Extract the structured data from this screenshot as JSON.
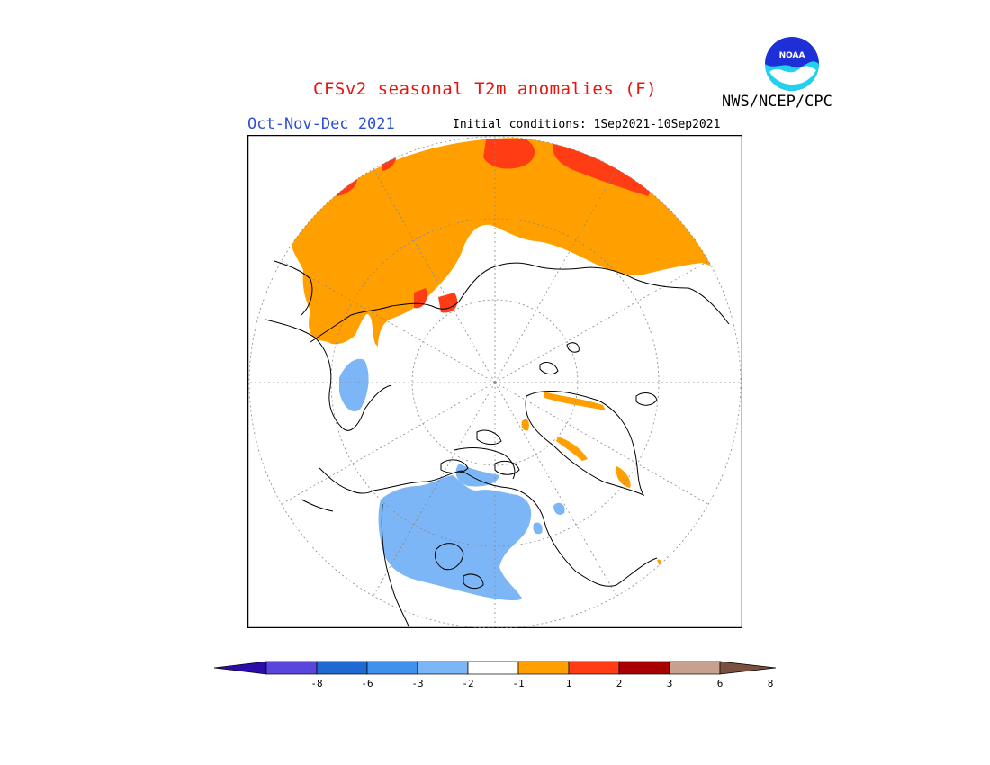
{
  "title": "CFSv2 seasonal T2m anomalies (F)",
  "season": "Oct-Nov-Dec 2021",
  "initial_conditions": "Initial conditions: 1Sep2021-10Sep2021",
  "agency": "NWS/NCEP/CPC",
  "logo_text": "NOAA",
  "colors": {
    "title": "#e8140e",
    "season": "#2b50d8",
    "orange": "#ff9f00",
    "red_orange": "#ff3c14",
    "light_blue": "#7cb6f6",
    "ocean": "#ffffff"
  },
  "legend": {
    "labels": [
      "-8",
      "-6",
      "-3",
      "-2",
      "-1",
      "1",
      "2",
      "3",
      "6",
      "8"
    ],
    "colors": [
      "#2c0cab",
      "#5a46dc",
      "#1e6ad2",
      "#4090ee",
      "#7cb6f6",
      "#ffffff",
      "#ff9f00",
      "#ff3c14",
      "#a80000",
      "#c9a090",
      "#7a5040"
    ]
  }
}
